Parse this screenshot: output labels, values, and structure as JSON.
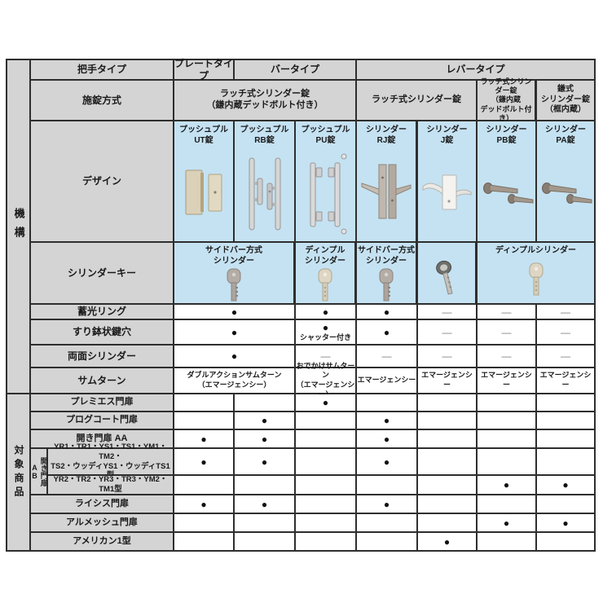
{
  "colors": {
    "grid": "#2e2e2e",
    "header_bg": "#d4d4d4",
    "blue_bg": "#c5e2f2",
    "cell_bg": "#ffffff",
    "dash": "#7d7d7d"
  },
  "glyphs": {
    "dot": "●",
    "dash": "—"
  },
  "table": {
    "sidebar": {
      "mechanism": "機構",
      "target_products": "対象商品"
    },
    "handle_row": {
      "label": "把手タイプ",
      "plate": "プレートタイプ",
      "bar": "バータイプ",
      "lever": "レバータイプ"
    },
    "locking_row": {
      "label": "施錠方式",
      "latch_deadbolt_wide": "ラッチ式シリンダー錠\n（鎌内蔵デッドボルト付き）",
      "latch": "ラッチ式シリンダー錠",
      "latch_deadbolt_narrow": "ラッチ式シリンダー錠\n（鎌内蔵\nデッドボルト付き）",
      "kama": "鎌式\nシリンダー錠\n（框内蔵）"
    },
    "design_row": {
      "label": "デザイン",
      "products": [
        {
          "name": "プッシュプル\nUT錠",
          "icon": "plate-handle"
        },
        {
          "name": "プッシュプル\nRB錠",
          "icon": "bar-handle"
        },
        {
          "name": "プッシュプル\nPU錠",
          "icon": "pushpull-bar"
        },
        {
          "name": "シリンダー\nRJ錠",
          "icon": "lever-plate"
        },
        {
          "name": "シリンダー\nJ錠",
          "icon": "lever-white"
        },
        {
          "name": "シリンダー\nPB錠",
          "icon": "lever-horizontal"
        },
        {
          "name": "シリンダー\nPA錠",
          "icon": "lever-horizontal"
        }
      ]
    },
    "key_row": {
      "label": "シリンダーキー",
      "cells": [
        {
          "name": "サイドバー方式\nシリンダー",
          "icon": "sidebar-key"
        },
        {
          "name": "ディンプル\nシリンダー",
          "icon": "dimple-key"
        },
        {
          "name": "サイドバー方式\nシリンダー",
          "icon": "sidebar-key"
        },
        {
          "name": "",
          "icon": "j-key"
        },
        {
          "name": "ディンプルシリンダー",
          "icon": "dimple-key"
        }
      ]
    },
    "features": {
      "rows": [
        {
          "label": "蓄光リング",
          "cells": [
            {
              "mark": "dot"
            },
            {
              "mark": "dot"
            },
            {
              "mark": "dot"
            },
            {
              "mark": "dash"
            },
            {
              "mark": "dash"
            },
            {
              "mark": "dash"
            }
          ]
        },
        {
          "label": "すり鉢状鍵穴",
          "cells": [
            {
              "mark": "dot"
            },
            {
              "mark": "dot",
              "note": "シャッター付き"
            },
            {
              "mark": "dot"
            },
            {
              "mark": "dash"
            },
            {
              "mark": "dash"
            },
            {
              "mark": "dash"
            }
          ]
        },
        {
          "label": "両面シリンダー",
          "cells": [
            {
              "mark": "dot"
            },
            {
              "mark": "dash"
            },
            {
              "mark": "dash"
            },
            {
              "mark": "dash"
            },
            {
              "mark": "dash"
            },
            {
              "mark": "dash"
            }
          ]
        },
        {
          "label": "サムターン",
          "cells": [
            {
              "text": "ダブルアクションサムターン\n（エマージェンシー）"
            },
            {
              "text": "おでかけサムターン\n（エマージェンシー）"
            },
            {
              "text": "エマージェンシー"
            },
            {
              "text": "エマージェンシー"
            },
            {
              "text": "エマージェンシー"
            },
            {
              "text": "エマージェンシー"
            }
          ]
        }
      ]
    },
    "products": {
      "group_label": "開き門扉AB",
      "rows": [
        {
          "label": "プレミエス門扉",
          "marks": [
            "",
            "",
            "dot",
            "",
            "",
            "",
            ""
          ]
        },
        {
          "label": "プログコート門扉",
          "marks": [
            "",
            "dot",
            "",
            "dot",
            "",
            "",
            ""
          ]
        },
        {
          "label": "開き門扉 AA",
          "marks": [
            "dot",
            "dot",
            "",
            "dot",
            "",
            "",
            ""
          ]
        },
        {
          "label": "YR1・TR1・YS1・TS1・YM1・TM2・\nTS2・ウッディYS1・ウッディTS1型",
          "grouped": true,
          "marks": [
            "dot",
            "dot",
            "",
            "dot",
            "",
            "",
            ""
          ]
        },
        {
          "label": "YR2・TR2・YR3・TR3・YM2・TM1型",
          "grouped": true,
          "marks": [
            "",
            "",
            "",
            "",
            "",
            "dot",
            "dot"
          ]
        },
        {
          "label": "ライシス門扉",
          "marks": [
            "dot",
            "dot",
            "",
            "dot",
            "",
            "",
            ""
          ]
        },
        {
          "label": "アルメッシュ門扉",
          "marks": [
            "",
            "",
            "",
            "",
            "",
            "dot",
            "dot"
          ]
        },
        {
          "label": "アメリカン1型",
          "marks": [
            "",
            "",
            "",
            "",
            "dot",
            "",
            ""
          ]
        }
      ]
    }
  }
}
